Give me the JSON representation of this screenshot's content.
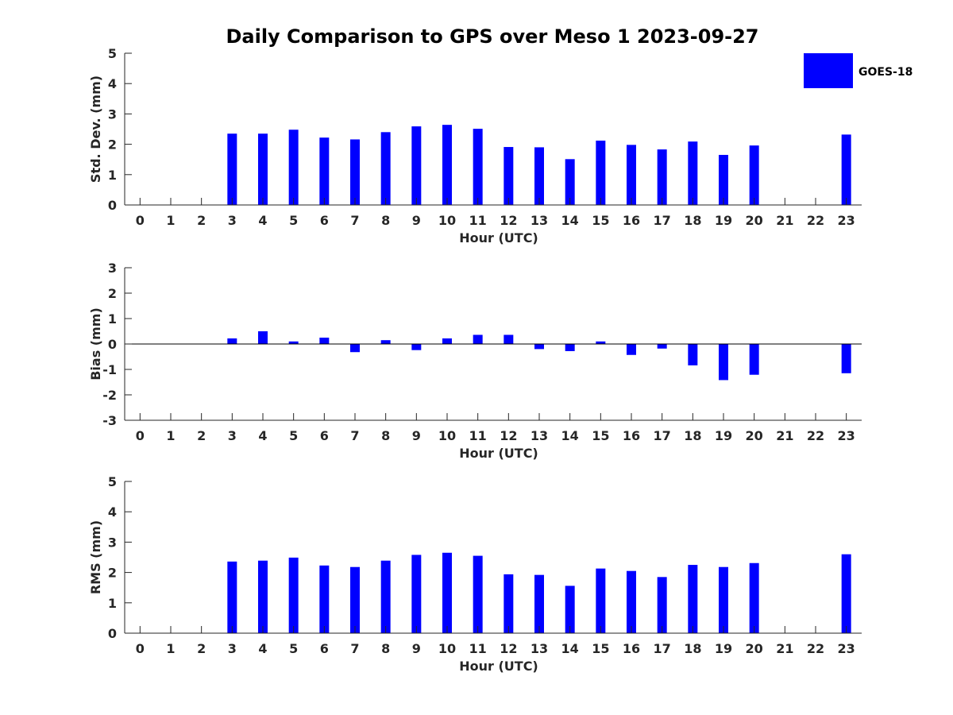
{
  "title": "Daily Comparison to GPS over Meso 1 2023-09-27",
  "legend": {
    "label": "GOES-18",
    "color": "#0000ff",
    "placement": "top-right"
  },
  "chart_data": [
    {
      "type": "bar",
      "x": [
        0,
        1,
        2,
        3,
        4,
        5,
        6,
        7,
        8,
        9,
        10,
        11,
        12,
        13,
        14,
        15,
        16,
        17,
        18,
        19,
        20,
        21,
        22,
        23
      ],
      "xlabel": "Hour (UTC)",
      "ylabel": "Std. Dev. (mm)",
      "ylim": [
        0,
        5
      ],
      "yticks": [
        0,
        1,
        2,
        3,
        4,
        5
      ],
      "series": [
        {
          "name": "GOES-18",
          "values": [
            null,
            null,
            null,
            2.35,
            2.35,
            2.48,
            2.22,
            2.16,
            2.4,
            2.59,
            2.64,
            2.51,
            1.91,
            1.9,
            1.51,
            2.12,
            1.98,
            1.83,
            2.09,
            1.65,
            1.96,
            null,
            null,
            2.32
          ]
        }
      ]
    },
    {
      "type": "bar",
      "x": [
        0,
        1,
        2,
        3,
        4,
        5,
        6,
        7,
        8,
        9,
        10,
        11,
        12,
        13,
        14,
        15,
        16,
        17,
        18,
        19,
        20,
        21,
        22,
        23
      ],
      "xlabel": "Hour (UTC)",
      "ylabel": "Bias (mm)",
      "ylim": [
        -3,
        3
      ],
      "yticks": [
        -3,
        -2,
        -1,
        0,
        1,
        2,
        3
      ],
      "series": [
        {
          "name": "GOES-18",
          "values": [
            null,
            null,
            null,
            0.22,
            0.5,
            0.1,
            0.25,
            -0.32,
            0.15,
            -0.24,
            0.22,
            0.36,
            0.36,
            -0.2,
            -0.28,
            0.1,
            -0.43,
            -0.18,
            -0.84,
            -1.42,
            -1.21,
            null,
            null,
            -1.15
          ]
        }
      ]
    },
    {
      "type": "bar",
      "x": [
        0,
        1,
        2,
        3,
        4,
        5,
        6,
        7,
        8,
        9,
        10,
        11,
        12,
        13,
        14,
        15,
        16,
        17,
        18,
        19,
        20,
        21,
        22,
        23
      ],
      "xlabel": "Hour (UTC)",
      "ylabel": "RMS (mm)",
      "ylim": [
        0,
        5
      ],
      "yticks": [
        0,
        1,
        2,
        3,
        4,
        5
      ],
      "series": [
        {
          "name": "GOES-18",
          "values": [
            null,
            null,
            null,
            2.36,
            2.39,
            2.49,
            2.23,
            2.18,
            2.39,
            2.58,
            2.65,
            2.55,
            1.94,
            1.92,
            1.56,
            2.13,
            2.05,
            1.85,
            2.25,
            2.18,
            2.31,
            null,
            null,
            2.6
          ]
        }
      ]
    }
  ]
}
